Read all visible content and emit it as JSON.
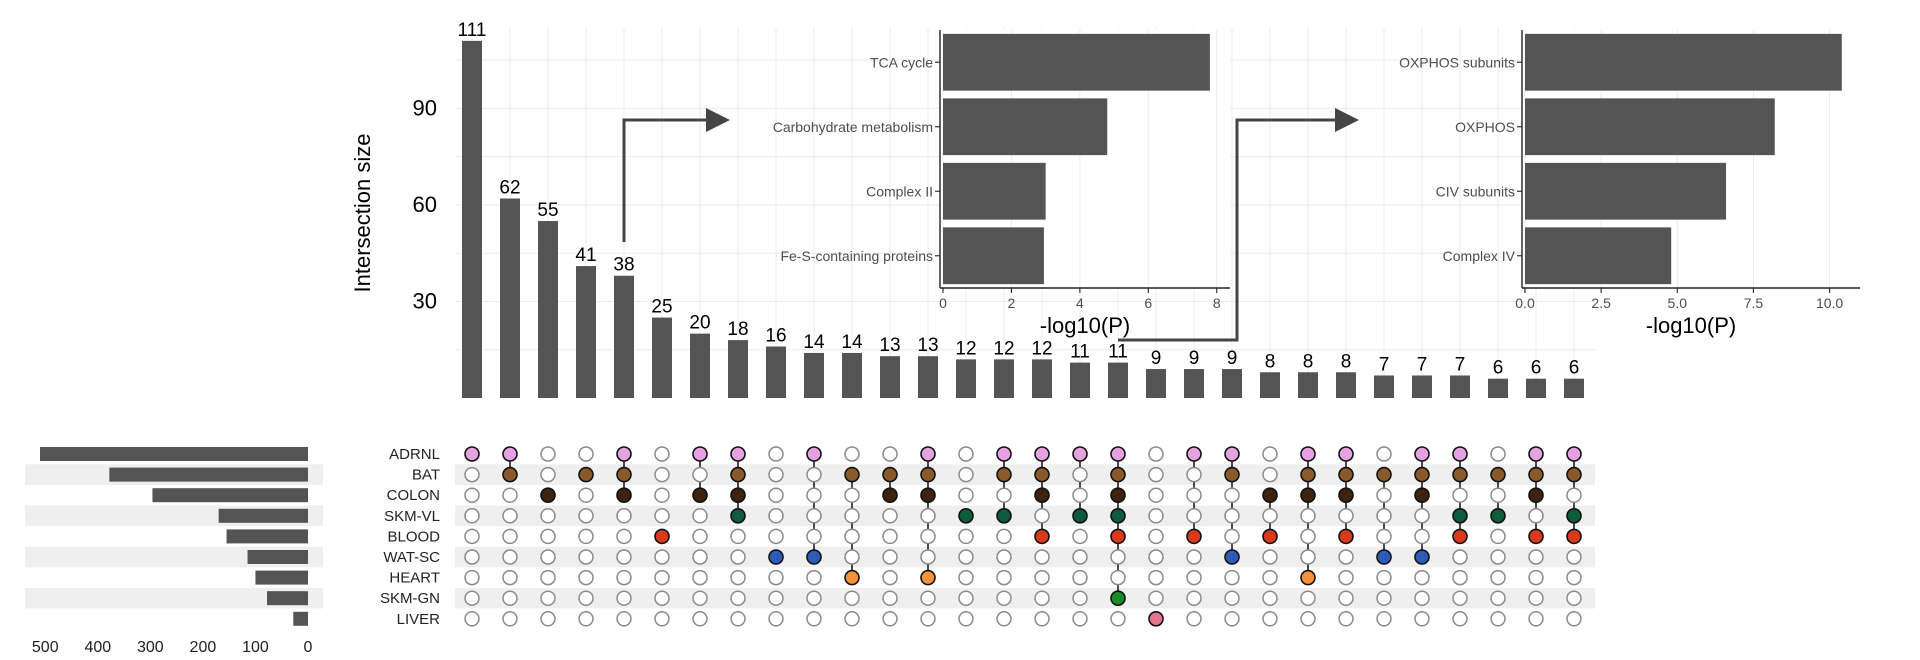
{
  "chart_data": [
    {
      "type": "bar",
      "ylabel": "Intersection size",
      "ylim": [
        0,
        115
      ],
      "yticks": [
        30,
        60,
        90
      ],
      "values": [
        111,
        62,
        55,
        41,
        38,
        25,
        20,
        18,
        16,
        14,
        14,
        13,
        13,
        12,
        12,
        12,
        11,
        11,
        9,
        9,
        9,
        8,
        8,
        8,
        7,
        7,
        7,
        6,
        6,
        6
      ],
      "colors": {
        "ADRNL": "#e5a3e2",
        "BAT": "#8b5a2b",
        "COLON": "#3d2310",
        "SKM-VL": "#0d5c3b",
        "BLOOD": "#d93a1e",
        "WAT-SC": "#2f5ab5",
        "HEART": "#f5933d",
        "SKM-GN": "#1b8a2b",
        "LIVER": "#e8738e"
      },
      "sets": [
        "ADRNL",
        "BAT",
        "COLON",
        "SKM-VL",
        "BLOOD",
        "WAT-SC",
        "HEART",
        "SKM-GN",
        "LIVER"
      ],
      "matrix": [
        [
          "ADRNL"
        ],
        [
          "ADRNL",
          "BAT"
        ],
        [
          "COLON"
        ],
        [
          "BAT"
        ],
        [
          "ADRNL",
          "BAT",
          "COLON"
        ],
        [
          "BLOOD"
        ],
        [
          "ADRNL",
          "COLON"
        ],
        [
          "ADRNL",
          "BAT",
          "COLON",
          "SKM-VL"
        ],
        [
          "WAT-SC"
        ],
        [
          "ADRNL",
          "WAT-SC"
        ],
        [
          "BAT",
          "HEART"
        ],
        [
          "BAT",
          "COLON"
        ],
        [
          "ADRNL",
          "BAT",
          "COLON",
          "HEART"
        ],
        [
          "SKM-VL"
        ],
        [
          "ADRNL",
          "BAT",
          "SKM-VL"
        ],
        [
          "ADRNL",
          "BAT",
          "COLON",
          "BLOOD"
        ],
        [
          "ADRNL",
          "SKM-VL"
        ],
        [
          "ADRNL",
          "BAT",
          "COLON",
          "SKM-VL",
          "BLOOD",
          "SKM-GN"
        ],
        [
          "LIVER"
        ],
        [
          "ADRNL",
          "BLOOD"
        ],
        [
          "ADRNL",
          "BAT",
          "WAT-SC"
        ],
        [
          "COLON",
          "BLOOD"
        ],
        [
          "ADRNL",
          "BAT",
          "COLON",
          "HEART"
        ],
        [
          "ADRNL",
          "BAT",
          "COLON",
          "BLOOD"
        ],
        [
          "BAT",
          "WAT-SC"
        ],
        [
          "ADRNL",
          "BAT",
          "COLON",
          "WAT-SC"
        ],
        [
          "ADRNL",
          "BAT",
          "SKM-VL",
          "BLOOD"
        ],
        [
          "BAT",
          "SKM-VL"
        ],
        [
          "ADRNL",
          "BAT",
          "COLON",
          "BLOOD"
        ],
        [
          "ADRNL",
          "BAT",
          "SKM-VL",
          "BLOOD"
        ]
      ]
    },
    {
      "type": "bar",
      "orientation": "horizontal",
      "categories": [
        "ADRNL",
        "BAT",
        "COLON",
        "SKM-VL",
        "BLOOD",
        "WAT-SC",
        "HEART",
        "SKM-GN",
        "LIVER"
      ],
      "values": [
        510,
        378,
        296,
        170,
        155,
        115,
        100,
        78,
        28
      ],
      "xlim": [
        0,
        525
      ],
      "xticks": [
        500,
        400,
        300,
        200,
        100,
        0
      ]
    },
    {
      "type": "bar",
      "orientation": "horizontal",
      "categories": [
        "TCA cycle",
        "Carbohydrate metabolism",
        "Complex II",
        "Fe-S-containing proteins"
      ],
      "values": [
        7.8,
        4.8,
        3.0,
        2.95
      ],
      "xlabel": "-log10(P)",
      "xlim": [
        0,
        8.3
      ],
      "xticks": [
        "0",
        "2",
        "4",
        "6",
        "8"
      ]
    },
    {
      "type": "bar",
      "orientation": "horizontal",
      "categories": [
        "OXPHOS subunits",
        "OXPHOS",
        "CIV subunits",
        "Complex IV"
      ],
      "values": [
        10.4,
        8.2,
        6.6,
        4.8
      ],
      "xlabel": "-log10(P)",
      "xlim": [
        0,
        10.9
      ],
      "xticks": [
        "0.0",
        "2.5",
        "5.0",
        "7.5",
        "10.0"
      ]
    }
  ]
}
